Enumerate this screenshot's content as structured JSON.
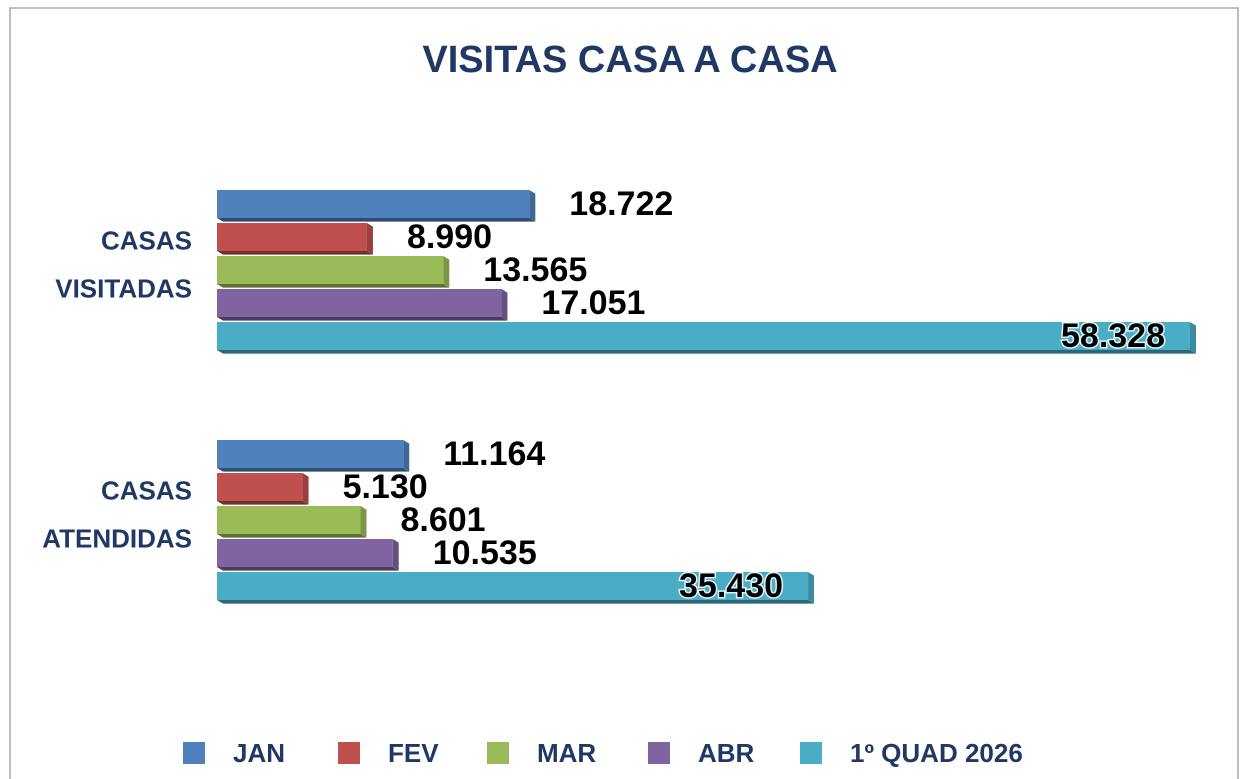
{
  "chart_data": {
    "type": "bar",
    "orientation": "horizontal",
    "title": "VISITAS CASA A CASA",
    "categories": [
      "CASAS VISITADAS",
      "CASAS ATENDIDAS"
    ],
    "series": [
      {
        "name": "JAN",
        "color": "#4f81bd",
        "values": [
          18722,
          11164
        ],
        "value_labels": [
          "18.722",
          "11.164"
        ]
      },
      {
        "name": "FEV",
        "color": "#c0504d",
        "values": [
          8990,
          5130
        ],
        "value_labels": [
          "8.990",
          "5.130"
        ]
      },
      {
        "name": "MAR",
        "color": "#9bbb59",
        "values": [
          13565,
          8601
        ],
        "value_labels": [
          "13.565",
          "8.601"
        ]
      },
      {
        "name": "ABR",
        "color": "#8064a2",
        "values": [
          17051,
          10535
        ],
        "value_labels": [
          "17.051",
          "10.535"
        ]
      },
      {
        "name": "1º QUAD 2026",
        "color": "#4bacc6",
        "values": [
          58328,
          35430
        ],
        "value_labels": [
          "58.328",
          "35.430"
        ]
      }
    ],
    "legend": "bottom"
  }
}
